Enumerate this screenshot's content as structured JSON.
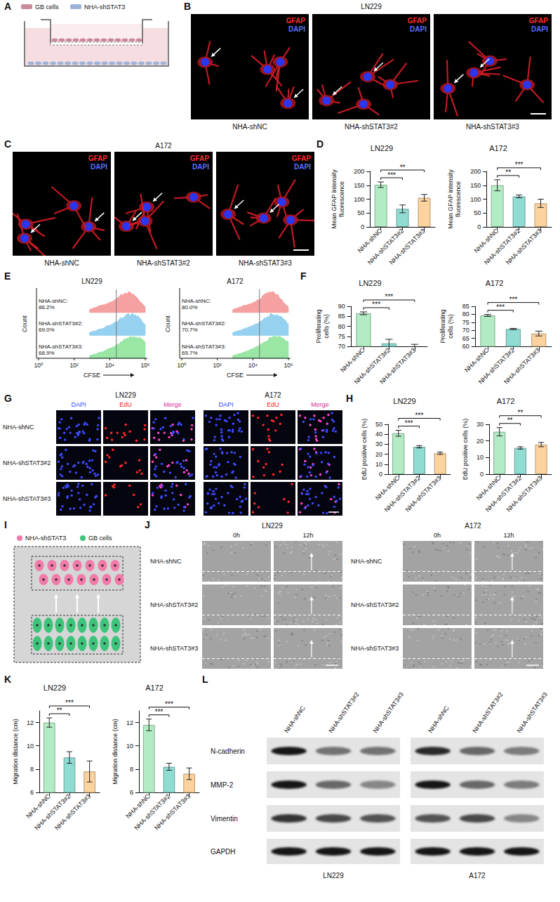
{
  "figure": {
    "panel_letters": [
      "A",
      "B",
      "C",
      "D",
      "E",
      "F",
      "G",
      "H",
      "I",
      "J",
      "K",
      "L"
    ],
    "A": {
      "legend": [
        {
          "label": "GB cells",
          "color": "#c98b9b"
        },
        {
          "label": "NHA-shSTAT3",
          "color": "#9db4d8"
        }
      ]
    },
    "B": {
      "title": "LN229",
      "stains": [
        {
          "label": "GFAP",
          "color": "#ff2b2b"
        },
        {
          "label": "DAPI",
          "color": "#5a70ff"
        }
      ],
      "captions": [
        "NHA-shNC",
        "NHA-shSTAT3#2",
        "NHA-shSTAT3#3"
      ]
    },
    "C": {
      "title": "A172",
      "stains": [
        {
          "label": "GFAP",
          "color": "#ff2b2b"
        },
        {
          "label": "DAPI",
          "color": "#5a70ff"
        }
      ],
      "captions": [
        "NHA-shNC",
        "NHA-shSTAT3#2",
        "NHA-shSTAT3#3"
      ]
    },
    "E": {
      "plots": [
        {
          "title": "LN229",
          "y_label": "Count",
          "x_label": "CFSE",
          "x_ticks": [
            "10⁰",
            "10²",
            "10⁴",
            "10⁶"
          ],
          "groups": [
            {
              "lines": [
                "NHA-shNC:",
                "86.2%"
              ],
              "color": "#f48a8a"
            },
            {
              "lines": [
                "NHA-shSTAT3#2:",
                "69.0%"
              ],
              "color": "#7cc6ec"
            },
            {
              "lines": [
                "NHA-shSTAT3#3:",
                "68.9%"
              ],
              "color": "#7fe08f"
            }
          ]
        },
        {
          "title": "A172",
          "y_label": "Count",
          "x_label": "CFSE",
          "x_ticks": [
            "10⁰",
            "10²",
            "10⁴",
            "10⁶"
          ],
          "groups": [
            {
              "lines": [
                "NHA-shNC:",
                "80.0%"
              ],
              "color": "#f48a8a"
            },
            {
              "lines": [
                "NHA-shSTAT3#2:",
                "70.7%"
              ],
              "color": "#7cc6ec"
            },
            {
              "lines": [
                "NHA-shSTAT3#3:",
                "65.7%"
              ],
              "color": "#7fe08f"
            }
          ]
        }
      ]
    },
    "G": {
      "groups": [
        "LN229",
        "A172"
      ],
      "columns": [
        {
          "label": "DAPI",
          "color": "#2f45ff"
        },
        {
          "label": "EdU",
          "color": "#ff2020"
        },
        {
          "label": "Merge",
          "color": "#d8319a"
        }
      ],
      "rows": [
        "NHA-shNC",
        "NHA-shSTAT3#2",
        "NHA-shSTAT3#3"
      ]
    },
    "I": {
      "legend": [
        {
          "label": "NHA-shSTAT3",
          "color": "#f27aa8"
        },
        {
          "label": "GB cells",
          "color": "#3cc47a"
        }
      ]
    },
    "J": {
      "groups": [
        "LN229",
        "A172"
      ],
      "columns": [
        "0h",
        "12h"
      ],
      "rows": [
        "NHA-shNC",
        "NHA-shSTAT3#2",
        "NHA-shSTAT3#3"
      ]
    },
    "L": {
      "proteins": [
        "N-cadherin",
        "MMP-2",
        "Vimentin",
        "GAPDH"
      ],
      "lanes": [
        "NHA-shNC",
        "NHA-shSTAT3#2",
        "NHA-shSTAT3#3",
        "NHA-shNC",
        "NHA-shSTAT3#2",
        "NHA-shSTAT3#3"
      ],
      "cell_lines": [
        "LN229",
        "A172"
      ]
    }
  },
  "chart_data": [
    {
      "type": "bar",
      "title": "LN229",
      "y_label": "Mean GFAP intensity fluorescence",
      "categories": [
        "NHA-shNC",
        "NHA-shSTAT3#2",
        "NHA-shSTAT3#3"
      ],
      "values": [
        152,
        65,
        105
      ],
      "errors": [
        10,
        14,
        12
      ],
      "colors": [
        "#b3ecc4",
        "#8fdcd3",
        "#fcd39f"
      ],
      "ylim": [
        0,
        200
      ],
      "yticks": [
        0,
        50,
        100,
        150,
        200
      ],
      "grid": false,
      "significance": [
        {
          "pair": [
            "NHA-shNC",
            "NHA-shSTAT3#2"
          ],
          "label": "***"
        },
        {
          "pair": [
            "NHA-shNC",
            "NHA-shSTAT3#3"
          ],
          "label": "**"
        }
      ]
    },
    {
      "type": "bar",
      "title": "A172",
      "y_label": "Mean GFAP intensity fluorescence",
      "categories": [
        "NHA-shNC",
        "NHA-shSTAT3#2",
        "NHA-shSTAT3#3"
      ],
      "values": [
        150,
        110,
        85
      ],
      "errors": [
        20,
        5,
        15
      ],
      "colors": [
        "#b3ecc4",
        "#8fdcd3",
        "#fcd39f"
      ],
      "ylim": [
        0,
        200
      ],
      "yticks": [
        0,
        50,
        100,
        150,
        200
      ],
      "grid": false,
      "significance": [
        {
          "pair": [
            "NHA-shNC",
            "NHA-shSTAT3#2"
          ],
          "label": "**"
        },
        {
          "pair": [
            "NHA-shNC",
            "NHA-shSTAT3#3"
          ],
          "label": "***"
        }
      ]
    },
    {
      "type": "bar",
      "title": "LN229",
      "y_label": "Proliferating cells (%)",
      "categories": [
        "NHA-shNC",
        "NHA-shSTAT3#2",
        "NHA-shSTAT3#3"
      ],
      "values": [
        86.5,
        71.5,
        70
      ],
      "errors": [
        0.7,
        2,
        1
      ],
      "colors": [
        "#b3ecc4",
        "#8fdcd3",
        "#fcd39f"
      ],
      "ylim": [
        70,
        90
      ],
      "yticks": [
        70,
        75,
        80,
        85,
        90
      ],
      "grid": false,
      "significance": [
        {
          "pair": [
            "NHA-shNC",
            "NHA-shSTAT3#2"
          ],
          "label": "***"
        },
        {
          "pair": [
            "NHA-shNC",
            "NHA-shSTAT3#3"
          ],
          "label": "***"
        }
      ]
    },
    {
      "type": "bar",
      "title": "A172",
      "y_label": "Proliferating cells (%)",
      "categories": [
        "NHA-shNC",
        "NHA-shSTAT3#2",
        "NHA-shSTAT3#3"
      ],
      "values": [
        79.3,
        70.8,
        68
      ],
      "errors": [
        0.6,
        0.4,
        1.5
      ],
      "colors": [
        "#b3ecc4",
        "#8fdcd3",
        "#fcd39f"
      ],
      "ylim": [
        60,
        85
      ],
      "yticks": [
        60,
        65,
        70,
        75,
        80,
        85
      ],
      "grid": false,
      "significance": [
        {
          "pair": [
            "NHA-shNC",
            "NHA-shSTAT3#2"
          ],
          "label": "***"
        },
        {
          "pair": [
            "NHA-shNC",
            "NHA-shSTAT3#3"
          ],
          "label": "***"
        }
      ]
    },
    {
      "type": "bar",
      "title": "LN229",
      "y_label": "EdU positive cells (%)",
      "categories": [
        "NHA-shNC",
        "NHA-shSTAT3#2",
        "NHA-shSTAT3#3"
      ],
      "values": [
        41,
        27.5,
        21
      ],
      "errors": [
        3,
        1.2,
        1.2
      ],
      "colors": [
        "#b3ecc4",
        "#8fdcd3",
        "#fcd39f"
      ],
      "ylim": [
        0,
        50
      ],
      "yticks": [
        0,
        10,
        20,
        30,
        40,
        50
      ],
      "grid": false,
      "significance": [
        {
          "pair": [
            "NHA-shNC",
            "NHA-shSTAT3#2"
          ],
          "label": "***"
        },
        {
          "pair": [
            "NHA-shNC",
            "NHA-shSTAT3#3"
          ],
          "label": "***"
        }
      ]
    },
    {
      "type": "bar",
      "title": "A172",
      "y_label": "EdU positive cells (%)",
      "categories": [
        "NHA-shNC",
        "NHA-shSTAT3#2",
        "NHA-shSTAT3#3"
      ],
      "values": [
        25.5,
        15.8,
        17.8
      ],
      "errors": [
        2.5,
        0.7,
        1.3
      ],
      "colors": [
        "#b3ecc4",
        "#8fdcd3",
        "#fcd39f"
      ],
      "ylim": [
        0,
        30
      ],
      "yticks": [
        0,
        10,
        20,
        30
      ],
      "grid": false,
      "significance": [
        {
          "pair": [
            "NHA-shNC",
            "NHA-shSTAT3#2"
          ],
          "label": "**"
        },
        {
          "pair": [
            "NHA-shNC",
            "NHA-shSTAT3#3"
          ],
          "label": "**"
        }
      ]
    },
    {
      "type": "bar",
      "title": "LN229",
      "y_label": "Migration distance (cm)",
      "categories": [
        "NHA-shNC",
        "NHA-shSTAT3#2",
        "NHA-shSTAT3#3"
      ],
      "values": [
        12,
        9,
        7.8
      ],
      "errors": [
        0.4,
        0.5,
        0.9
      ],
      "colors": [
        "#b3ecc4",
        "#8fdcd3",
        "#fcd39f"
      ],
      "ylim": [
        6,
        13
      ],
      "yticks": [
        6,
        8,
        10,
        12
      ],
      "grid": false,
      "significance": [
        {
          "pair": [
            "NHA-shNC",
            "NHA-shSTAT3#2"
          ],
          "label": "**"
        },
        {
          "pair": [
            "NHA-shNC",
            "NHA-shSTAT3#3"
          ],
          "label": "***"
        }
      ]
    },
    {
      "type": "bar",
      "title": "A172",
      "y_label": "Migration distance (cm)",
      "categories": [
        "NHA-shNC",
        "NHA-shSTAT3#2",
        "NHA-shSTAT3#3"
      ],
      "values": [
        11.8,
        8.2,
        7.6
      ],
      "errors": [
        0.5,
        0.3,
        0.5
      ],
      "colors": [
        "#b3ecc4",
        "#8fdcd3",
        "#fcd39f"
      ],
      "ylim": [
        6,
        13
      ],
      "yticks": [
        6,
        8,
        10,
        12
      ],
      "grid": false,
      "significance": [
        {
          "pair": [
            "NHA-shNC",
            "NHA-shSTAT3#2"
          ],
          "label": "***"
        },
        {
          "pair": [
            "NHA-shNC",
            "NHA-shSTAT3#3"
          ],
          "label": "***"
        }
      ]
    }
  ]
}
